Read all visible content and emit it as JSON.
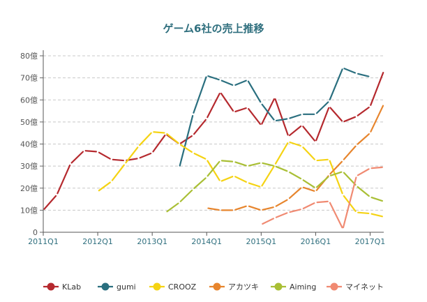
{
  "chart_data": {
    "type": "line",
    "title": "ゲーム6社の売上推移",
    "xlabel": "",
    "ylabel": "",
    "ylim": [
      0,
      80
    ],
    "y_ticks": [
      0,
      10,
      20,
      30,
      40,
      50,
      60,
      70,
      80
    ],
    "y_tick_labels": [
      "0",
      "10億",
      "20億",
      "30億",
      "40億",
      "50億",
      "60億",
      "70億",
      "80億"
    ],
    "x_range": [
      2011.0,
      2017.25
    ],
    "x_ticks": [
      2011.0,
      2012.0,
      2013.0,
      2014.0,
      2015.0,
      2016.0,
      2017.0
    ],
    "x_tick_labels": [
      "2011Q1",
      "2012Q1",
      "2013Q1",
      "2014Q1",
      "2015Q1",
      "2016Q1",
      "2017Q1"
    ],
    "grid": "horizontal dashed",
    "legend_position": "bottom",
    "series": [
      {
        "name": "KLab",
        "color": "#b5292e",
        "x": [
          2011.0,
          2011.25,
          2011.5,
          2011.75,
          2012.0,
          2012.25,
          2012.5,
          2012.75,
          2013.0,
          2013.25,
          2013.5,
          2013.75,
          2014.0,
          2014.25,
          2014.5,
          2014.75,
          2015.0,
          2015.25,
          2015.5,
          2015.75,
          2016.0,
          2016.25,
          2016.5,
          2016.75,
          2017.0,
          2017.25
        ],
        "values": [
          10,
          17,
          31,
          37,
          36.5,
          33,
          32.5,
          33.5,
          36,
          44.5,
          40,
          44,
          51.5,
          63.5,
          54.5,
          56.5,
          48.5,
          61,
          43.5,
          48.5,
          41,
          57,
          50,
          52.5,
          57,
          73
        ]
      },
      {
        "name": "gumi",
        "color": "#2a6f7f",
        "x": [
          2013.5,
          2013.75,
          2014.0,
          2014.25,
          2014.5,
          2014.75,
          2015.0,
          2015.25,
          2015.5,
          2015.75,
          2016.0,
          2016.25,
          2016.5,
          2016.75,
          2017.0
        ],
        "values": [
          29.5,
          53.5,
          71,
          69,
          66.5,
          69,
          58.5,
          50.5,
          51.5,
          53.5,
          53.5,
          59.5,
          74.5,
          72,
          70.5
        ]
      },
      {
        "name": "CROOZ",
        "color": "#f5d313",
        "x": [
          2012.0,
          2012.25,
          2012.5,
          2012.75,
          2013.0,
          2013.25,
          2013.5,
          2013.75,
          2014.0,
          2014.25,
          2014.5,
          2014.75,
          2015.0,
          2015.25,
          2015.5,
          2015.75,
          2016.0,
          2016.25,
          2016.5,
          2016.75,
          2017.0,
          2017.25
        ],
        "values": [
          18.5,
          23,
          31,
          39,
          45.5,
          45,
          40,
          36,
          33,
          23,
          25.5,
          22.5,
          20.5,
          30.5,
          41,
          39,
          32.5,
          33,
          17,
          9,
          8.5,
          7
        ]
      },
      {
        "name": "アカツキ",
        "color": "#e7852d",
        "x": [
          2014.0,
          2014.25,
          2014.5,
          2014.75,
          2015.0,
          2015.25,
          2015.5,
          2015.75,
          2016.0,
          2016.25,
          2016.5,
          2016.75,
          2017.0,
          2017.25
        ],
        "values": [
          11,
          10,
          10,
          12,
          10,
          11.5,
          15,
          20.5,
          18.5,
          26,
          32.5,
          39.5,
          45,
          58
        ]
      },
      {
        "name": "Aiming",
        "color": "#a9bf35",
        "x": [
          2013.25,
          2013.5,
          2013.75,
          2014.0,
          2014.25,
          2014.5,
          2014.75,
          2015.0,
          2015.25,
          2015.5,
          2015.75,
          2016.0,
          2016.25,
          2016.5,
          2016.75,
          2017.0,
          2017.25
        ],
        "values": [
          9,
          13.5,
          19.5,
          25,
          32.5,
          32,
          30,
          31.5,
          30,
          27.5,
          24,
          20,
          25.5,
          27.5,
          21,
          16,
          14
        ]
      },
      {
        "name": "マイネット",
        "color": "#f08a72",
        "x": [
          2015.0,
          2015.25,
          2015.5,
          2015.75,
          2016.0,
          2016.25,
          2016.5,
          2016.75,
          2017.0,
          2017.25
        ],
        "values": [
          3.5,
          6.5,
          9,
          10.5,
          13.5,
          14,
          1.5,
          25.5,
          29,
          29.5
        ]
      }
    ]
  }
}
